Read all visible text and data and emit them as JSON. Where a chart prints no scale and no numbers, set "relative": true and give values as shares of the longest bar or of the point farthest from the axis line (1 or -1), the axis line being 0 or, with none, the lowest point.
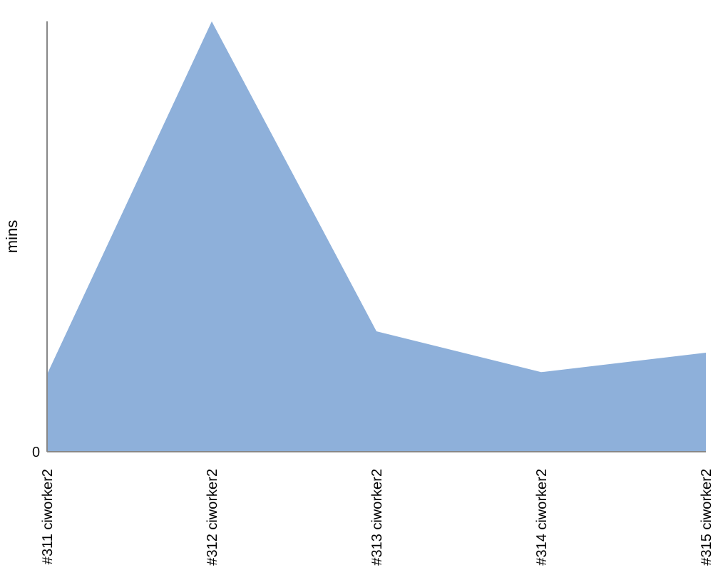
{
  "chart_data": {
    "type": "area",
    "ylabel": "mins",
    "relative": true,
    "categories": [
      "#311 ciworker2",
      "#312 ciworker2",
      "#313 ciworker2",
      "#314 ciworker2",
      "#315 ciworker2"
    ],
    "series": [
      {
        "color": "#8eb0da",
        "values": [
          0.18,
          1,
          0.28,
          0.185,
          0.23
        ]
      }
    ],
    "annotations": [
      "0"
    ]
  }
}
